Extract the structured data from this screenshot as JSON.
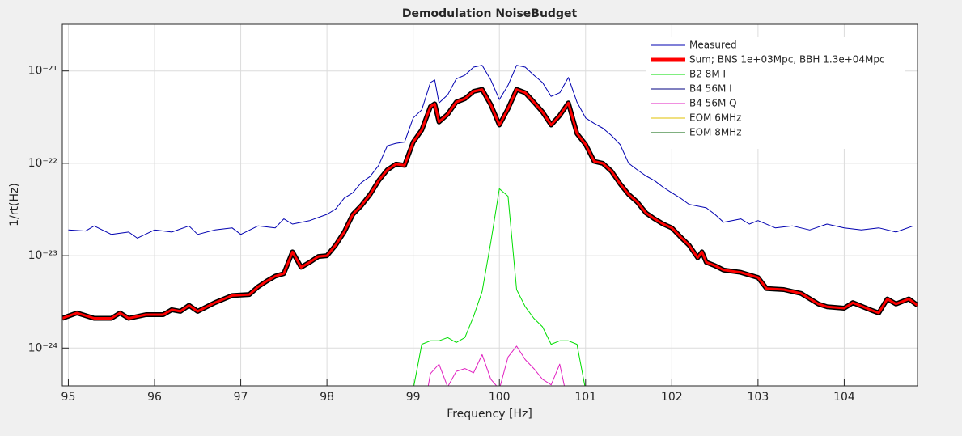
{
  "chart_data": {
    "type": "line",
    "title": "Demodulation NoiseBudget",
    "xlabel": "Frequency [Hz]",
    "ylabel": "1/rt(Hz)",
    "log_y": true,
    "grid": true,
    "legend": "northeast",
    "xlim": [
      94.93,
      104.85
    ],
    "ylim": [
      3.9e-25,
      3.2e-21
    ],
    "xticks": [
      95,
      96,
      97,
      98,
      99,
      100,
      101,
      102,
      103,
      104
    ],
    "yticks": [
      {
        "value": 1e-24,
        "label": "10⁻²⁴"
      },
      {
        "value": 1e-23,
        "label": "10⁻²³"
      },
      {
        "value": 1e-22,
        "label": "10⁻²²"
      },
      {
        "value": 1e-21,
        "label": "10⁻²¹"
      }
    ],
    "series": [
      {
        "name": "Measured",
        "color": "#0000b0",
        "width": 1,
        "x": [
          95.0,
          95.2,
          95.3,
          95.5,
          95.7,
          95.8,
          96.0,
          96.2,
          96.4,
          96.5,
          96.7,
          96.9,
          97.0,
          97.2,
          97.4,
          97.5,
          97.6,
          97.8,
          98.0,
          98.1,
          98.2,
          98.3,
          98.4,
          98.5,
          98.6,
          98.7,
          98.8,
          98.9,
          99.0,
          99.1,
          99.2,
          99.25,
          99.3,
          99.4,
          99.5,
          99.6,
          99.7,
          99.8,
          99.9,
          100.0,
          100.1,
          100.2,
          100.3,
          100.4,
          100.5,
          100.6,
          100.7,
          100.8,
          100.9,
          101.0,
          101.1,
          101.2,
          101.3,
          101.4,
          101.5,
          101.6,
          101.7,
          101.8,
          101.9,
          102.0,
          102.1,
          102.2,
          102.4,
          102.5,
          102.6,
          102.7,
          102.8,
          102.9,
          103.0,
          103.2,
          103.4,
          103.6,
          103.8,
          104.0,
          104.2,
          104.4,
          104.6,
          104.8
        ],
        "values": [
          1.9e-23,
          1.85e-23,
          2.1e-23,
          1.7e-23,
          1.8e-23,
          1.55e-23,
          1.9e-23,
          1.8e-23,
          2.1e-23,
          1.7e-23,
          1.9e-23,
          2e-23,
          1.7e-23,
          2.1e-23,
          2e-23,
          2.5e-23,
          2.2e-23,
          2.4e-23,
          2.8e-23,
          3.2e-23,
          4.2e-23,
          4.8e-23,
          6.2e-23,
          7.2e-23,
          9.5e-23,
          1.55e-22,
          1.65e-22,
          1.7e-22,
          3.1e-22,
          3.8e-22,
          7.5e-22,
          8e-22,
          4.5e-22,
          5.5e-22,
          8.2e-22,
          9e-22,
          1.1e-21,
          1.15e-21,
          8e-22,
          4.9e-22,
          7e-22,
          1.15e-21,
          1.1e-21,
          9e-22,
          7.5e-22,
          5.3e-22,
          5.8e-22,
          8.5e-22,
          4.6e-22,
          3.1e-22,
          2.7e-22,
          2.4e-22,
          2e-22,
          1.6e-22,
          1e-22,
          8.5e-23,
          7.3e-23,
          6.5e-23,
          5.5e-23,
          4.8e-23,
          4.2e-23,
          3.6e-23,
          3.3e-23,
          2.8e-23,
          2.3e-23,
          2.4e-23,
          2.5e-23,
          2.2e-23,
          2.4e-23,
          2e-23,
          2.1e-23,
          1.9e-23,
          2.2e-23,
          2e-23,
          1.9e-23,
          2e-23,
          1.8e-23,
          2.1e-23
        ]
      },
      {
        "name": "Sum; BNS 1e+03Mpc, BBH 1.3e+04Mpc",
        "color": "#ff0000",
        "width": 4,
        "x": [
          94.93,
          95.1,
          95.3,
          95.5,
          95.6,
          95.7,
          95.9,
          96.1,
          96.2,
          96.3,
          96.4,
          96.5,
          96.7,
          96.9,
          97.1,
          97.2,
          97.3,
          97.4,
          97.5,
          97.6,
          97.7,
          97.8,
          97.9,
          98.0,
          98.1,
          98.2,
          98.3,
          98.4,
          98.5,
          98.6,
          98.7,
          98.8,
          98.9,
          99.0,
          99.1,
          99.2,
          99.25,
          99.3,
          99.4,
          99.5,
          99.6,
          99.7,
          99.8,
          99.9,
          100.0,
          100.1,
          100.2,
          100.3,
          100.4,
          100.5,
          100.6,
          100.7,
          100.8,
          100.9,
          101.0,
          101.1,
          101.2,
          101.3,
          101.4,
          101.5,
          101.6,
          101.7,
          101.8,
          101.9,
          102.0,
          102.1,
          102.2,
          102.3,
          102.35,
          102.4,
          102.5,
          102.6,
          102.8,
          103.0,
          103.1,
          103.3,
          103.5,
          103.7,
          103.8,
          104.0,
          104.1,
          104.3,
          104.4,
          104.5,
          104.6,
          104.75,
          104.85
        ],
        "values": [
          2.1e-24,
          2.4e-24,
          2.1e-24,
          2.1e-24,
          2.4e-24,
          2.1e-24,
          2.3e-24,
          2.3e-24,
          2.6e-24,
          2.5e-24,
          2.9e-24,
          2.5e-24,
          3.1e-24,
          3.7e-24,
          3.8e-24,
          4.6e-24,
          5.3e-24,
          6e-24,
          6.4e-24,
          1.1e-23,
          7.5e-24,
          8.5e-24,
          9.8e-24,
          1e-23,
          1.3e-23,
          1.8e-23,
          2.8e-23,
          3.5e-23,
          4.6e-23,
          6.5e-23,
          8.5e-23,
          9.8e-23,
          9.5e-23,
          1.7e-22,
          2.3e-22,
          4.1e-22,
          4.4e-22,
          2.8e-22,
          3.4e-22,
          4.6e-22,
          5e-22,
          6e-22,
          6.3e-22,
          4.3e-22,
          2.6e-22,
          3.9e-22,
          6.3e-22,
          5.8e-22,
          4.6e-22,
          3.6e-22,
          2.6e-22,
          3.3e-22,
          4.5e-22,
          2.1e-22,
          1.6e-22,
          1.05e-22,
          1e-22,
          8.2e-23,
          6e-23,
          4.6e-23,
          3.8e-23,
          2.9e-23,
          2.5e-23,
          2.2e-23,
          2e-23,
          1.6e-23,
          1.3e-23,
          9.5e-24,
          1.1e-23,
          8.5e-24,
          7.8e-24,
          7e-24,
          6.6e-24,
          5.8e-24,
          4.4e-24,
          4.3e-24,
          3.9e-24,
          3e-24,
          2.8e-24,
          2.7e-24,
          3.1e-24,
          2.6e-24,
          2.4e-24,
          3.4e-24,
          3e-24,
          3.4e-24,
          2.9e-24
        ]
      },
      {
        "name": "B2 8M I",
        "color": "#00dd00",
        "width": 1,
        "x": [
          98.95,
          99.1,
          99.2,
          99.3,
          99.4,
          99.5,
          99.6,
          99.7,
          99.8,
          99.9,
          100.0,
          100.1,
          100.2,
          100.3,
          100.4,
          100.5,
          100.6,
          100.7,
          100.8,
          100.9,
          101.05
        ],
        "values": [
          2e-25,
          1.1e-24,
          1.2e-24,
          1.2e-24,
          1.3e-24,
          1.15e-24,
          1.3e-24,
          2.2e-24,
          4.1e-24,
          1.4e-23,
          5.3e-23,
          4.4e-23,
          4.3e-24,
          2.8e-24,
          2.1e-24,
          1.7e-24,
          1.1e-24,
          1.2e-24,
          1.2e-24,
          1.1e-24,
          2e-25
        ]
      },
      {
        "name": "B4 56M I",
        "color": "#000080",
        "width": 1,
        "x": [],
        "values": []
      },
      {
        "name": "B4 56M Q",
        "color": "#e020c0",
        "width": 1,
        "x": [
          99.12,
          99.2,
          99.3,
          99.4,
          99.5,
          99.6,
          99.7,
          99.8,
          99.9,
          100.0,
          100.1,
          100.2,
          100.3,
          100.4,
          100.5,
          100.6,
          100.7,
          100.82
        ],
        "values": [
          2e-25,
          5.3e-25,
          6.7e-25,
          3.8e-25,
          5.6e-25,
          6e-25,
          5.4e-25,
          8.5e-25,
          4.6e-25,
          3.6e-25,
          8e-25,
          1.05e-24,
          7.5e-25,
          6e-25,
          4.6e-25,
          4e-25,
          6.7e-25,
          2e-25
        ]
      },
      {
        "name": "EOM 6MHz",
        "color": "#e0c000",
        "width": 1,
        "x": [],
        "values": []
      },
      {
        "name": "EOM 8MHz",
        "color": "#006000",
        "width": 1,
        "x": [],
        "values": []
      }
    ]
  }
}
